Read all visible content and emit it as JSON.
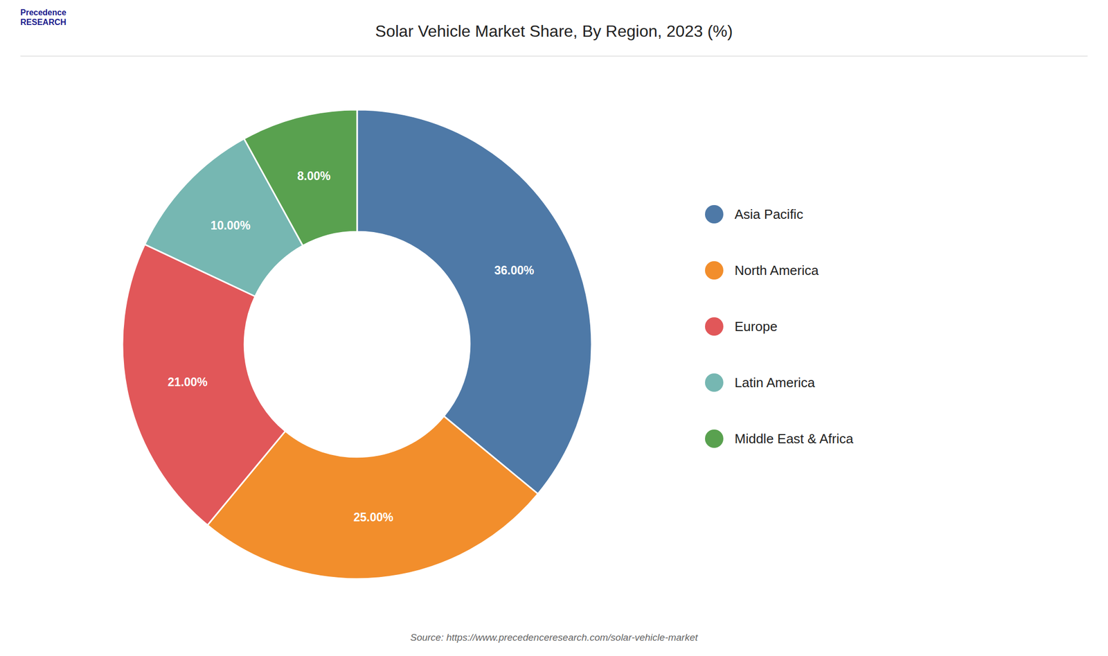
{
  "chart_data": {
    "type": "donut",
    "title": "Solar Vehicle Market Share, By Region, 2023 (%)",
    "categories": [
      "Asia Pacific",
      "North America",
      "Europe",
      "Latin America",
      "Middle East & Africa"
    ],
    "values": [
      36,
      25,
      21,
      10,
      8
    ],
    "value_labels": [
      "36.00%",
      "25.00%",
      "21.00%",
      "10.00%",
      "8.00%"
    ],
    "data_labels": true,
    "legend": "right",
    "annotations": [
      "Source: https://www.precedenceresearch.com/solar-vehicle-market",
      "Precedence\nRESEARCH"
    ]
  }
}
